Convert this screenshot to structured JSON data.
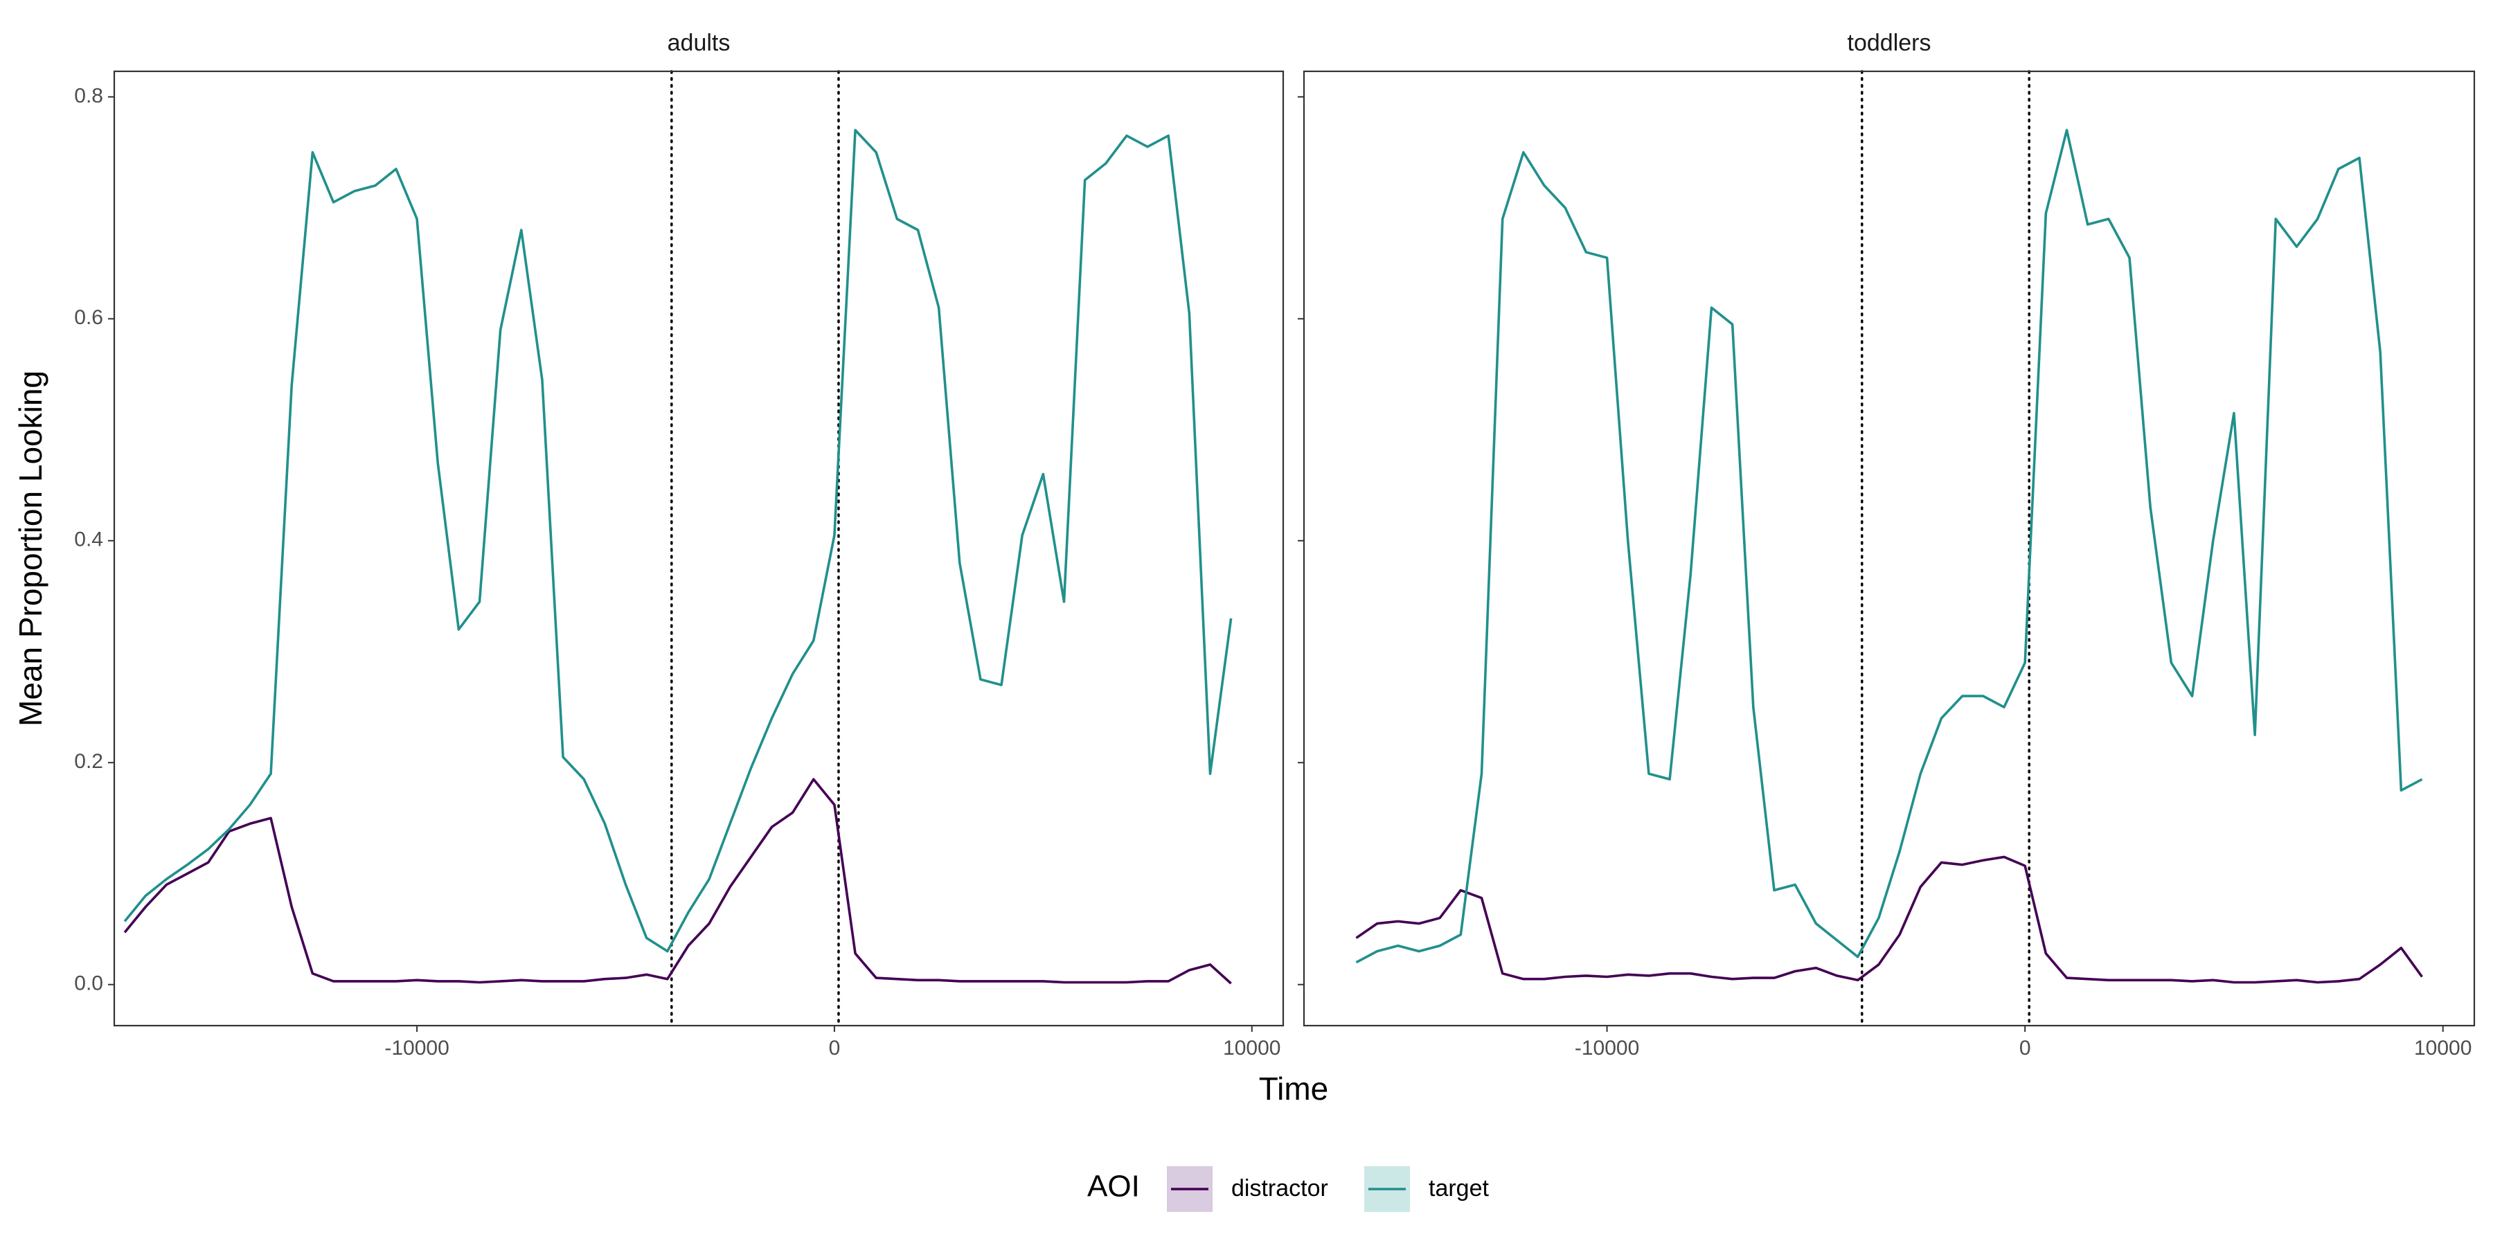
{
  "axis_labels": {
    "x": "Time",
    "y": "Mean Proportion Looking"
  },
  "legend": {
    "title": "AOI"
  },
  "chart_data": [
    {
      "type": "line",
      "title": "adults",
      "x": [
        -17000,
        -16500,
        -16000,
        -15500,
        -15000,
        -14500,
        -14000,
        -13500,
        -13000,
        -12500,
        -12000,
        -11500,
        -11000,
        -10500,
        -10000,
        -9500,
        -9000,
        -8500,
        -8000,
        -7500,
        -7000,
        -6500,
        -6000,
        -5500,
        -5000,
        -4500,
        -4000,
        -3500,
        -3000,
        -2500,
        -2000,
        -1500,
        -1000,
        -500,
        0,
        500,
        1000,
        1500,
        2000,
        2500,
        3000,
        3500,
        4000,
        4500,
        5000,
        5500,
        6000,
        6500,
        7000,
        7500,
        8000,
        8500,
        9000,
        9500
      ],
      "series": [
        {
          "name": "distractor",
          "color": "#440154",
          "values": [
            0.047,
            0.07,
            0.09,
            0.1,
            0.11,
            0.138,
            0.145,
            0.15,
            0.07,
            0.01,
            0.003,
            0.003,
            0.003,
            0.003,
            0.004,
            0.003,
            0.003,
            0.002,
            0.003,
            0.004,
            0.003,
            0.003,
            0.003,
            0.005,
            0.006,
            0.009,
            0.005,
            0.035,
            0.055,
            0.088,
            0.115,
            0.142,
            0.155,
            0.185,
            0.162,
            0.028,
            0.006,
            0.005,
            0.004,
            0.004,
            0.003,
            0.003,
            0.003,
            0.003,
            0.003,
            0.002,
            0.002,
            0.002,
            0.002,
            0.003,
            0.003,
            0.013,
            0.018,
            0.001
          ]
        },
        {
          "name": "target",
          "color": "#21908c",
          "values": [
            0.057,
            0.08,
            0.095,
            0.108,
            0.122,
            0.14,
            0.162,
            0.19,
            0.54,
            0.75,
            0.705,
            0.715,
            0.72,
            0.735,
            0.69,
            0.47,
            0.32,
            0.345,
            0.59,
            0.68,
            0.545,
            0.205,
            0.185,
            0.145,
            0.09,
            0.042,
            0.03,
            0.065,
            0.095,
            0.145,
            0.195,
            0.24,
            0.28,
            0.31,
            0.405,
            0.77,
            0.75,
            0.69,
            0.68,
            0.61,
            0.38,
            0.275,
            0.27,
            0.405,
            0.46,
            0.345,
            0.725,
            0.74,
            0.765,
            0.755,
            0.765,
            0.605,
            0.19,
            0.33
          ]
        }
      ],
      "xlim": [
        -17250,
        10750
      ],
      "ylim": [
        -0.037,
        0.823
      ],
      "xticks": [
        -10000,
        0,
        10000
      ],
      "yticks": [
        {
          "value": 0,
          "label": "0.0"
        },
        0.2,
        0.4,
        0.6,
        0.8
      ],
      "vlines": [
        -3900,
        100
      ],
      "grid": false
    },
    {
      "type": "line",
      "title": "toddlers",
      "x": [
        -16000,
        -15500,
        -15000,
        -14500,
        -14000,
        -13500,
        -13000,
        -12500,
        -12000,
        -11500,
        -11000,
        -10500,
        -10000,
        -9500,
        -9000,
        -8500,
        -8000,
        -7500,
        -7000,
        -6500,
        -6000,
        -5500,
        -5000,
        -4500,
        -4000,
        -3500,
        -3000,
        -2500,
        -2000,
        -1500,
        -1000,
        -500,
        0,
        500,
        1000,
        1500,
        2000,
        2500,
        3000,
        3500,
        4000,
        4500,
        5000,
        5500,
        6000,
        6500,
        7000,
        7500,
        8000,
        8500,
        9000,
        9500
      ],
      "series": [
        {
          "name": "distractor",
          "color": "#440154",
          "values": [
            0.042,
            0.055,
            0.057,
            0.055,
            0.06,
            0.085,
            0.078,
            0.01,
            0.005,
            0.005,
            0.007,
            0.008,
            0.007,
            0.009,
            0.008,
            0.01,
            0.01,
            0.007,
            0.005,
            0.006,
            0.006,
            0.012,
            0.015,
            0.008,
            0.004,
            0.018,
            0.045,
            0.088,
            0.11,
            0.108,
            0.112,
            0.115,
            0.107,
            0.028,
            0.006,
            0.005,
            0.004,
            0.004,
            0.004,
            0.004,
            0.003,
            0.004,
            0.002,
            0.002,
            0.003,
            0.004,
            0.002,
            0.003,
            0.005,
            0.018,
            0.033,
            0.007
          ]
        },
        {
          "name": "target",
          "color": "#21908c",
          "values": [
            0.02,
            0.03,
            0.035,
            0.03,
            0.035,
            0.045,
            0.19,
            0.69,
            0.75,
            0.72,
            0.7,
            0.66,
            0.655,
            0.4,
            0.19,
            0.185,
            0.37,
            0.61,
            0.595,
            0.25,
            0.085,
            0.09,
            0.055,
            0.04,
            0.025,
            0.06,
            0.12,
            0.19,
            0.24,
            0.26,
            0.26,
            0.25,
            0.29,
            0.695,
            0.77,
            0.685,
            0.69,
            0.655,
            0.43,
            0.29,
            0.26,
            0.4,
            0.515,
            0.225,
            0.69,
            0.665,
            0.69,
            0.735,
            0.745,
            0.57,
            0.175,
            0.185
          ]
        }
      ],
      "xlim": [
        -17250,
        10750
      ],
      "ylim": [
        -0.037,
        0.823
      ],
      "xticks": [
        -10000,
        0,
        10000
      ],
      "yticks": [
        {
          "value": 0,
          "label": "0.0"
        },
        0.2,
        0.4,
        0.6,
        0.8
      ],
      "vlines": [
        -3900,
        100
      ],
      "grid": false
    }
  ]
}
